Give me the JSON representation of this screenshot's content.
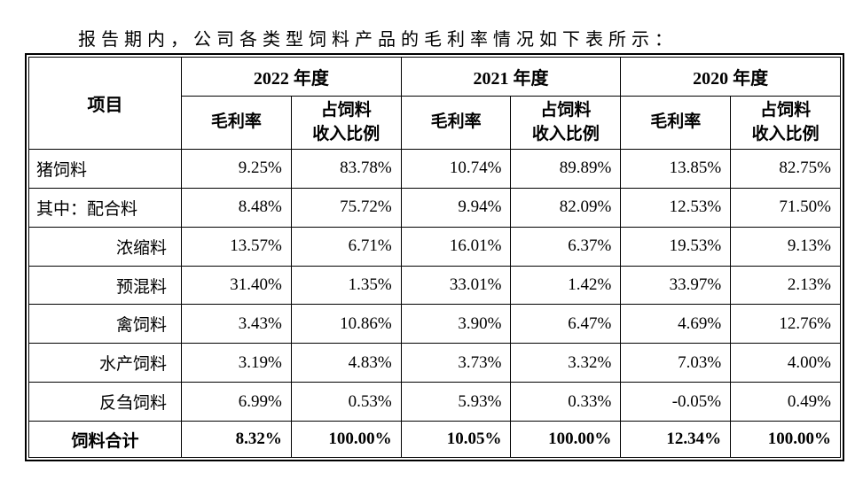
{
  "page": {
    "intro_text": "报告期内，公司各类型饲料产品的毛利率情况如下表所示："
  },
  "table": {
    "corner_header": "项目",
    "year_groups": [
      {
        "label": "2022 年度"
      },
      {
        "label": "2021 年度"
      },
      {
        "label": "2020 年度"
      }
    ],
    "sub_headers": {
      "margin_label": "毛利率",
      "share_label_line1": "占饲料",
      "share_label_line2": "收入比例"
    },
    "rows": [
      {
        "label": "猪饲料",
        "values": [
          "9.25%",
          "83.78%",
          "10.74%",
          "89.89%",
          "13.85%",
          "82.75%"
        ]
      },
      {
        "label": "其中：配合料",
        "values": [
          "8.48%",
          "75.72%",
          "9.94%",
          "82.09%",
          "12.53%",
          "71.50%"
        ]
      },
      {
        "label": "浓缩料",
        "values": [
          "13.57%",
          "6.71%",
          "16.01%",
          "6.37%",
          "19.53%",
          "9.13%"
        ]
      },
      {
        "label": "预混料",
        "values": [
          "31.40%",
          "1.35%",
          "33.01%",
          "1.42%",
          "33.97%",
          "2.13%"
        ]
      },
      {
        "label": "禽饲料",
        "values": [
          "3.43%",
          "10.86%",
          "3.90%",
          "6.47%",
          "4.69%",
          "12.76%"
        ]
      },
      {
        "label": "水产饲料",
        "values": [
          "3.19%",
          "4.83%",
          "3.73%",
          "3.32%",
          "7.03%",
          "4.00%"
        ]
      },
      {
        "label": "反刍饲料",
        "values": [
          "6.99%",
          "0.53%",
          "5.93%",
          "0.33%",
          "-0.05%",
          "0.49%"
        ]
      },
      {
        "label": "饲料合计",
        "values": [
          "8.32%",
          "100.00%",
          "10.05%",
          "100.00%",
          "12.34%",
          "100.00%"
        ]
      }
    ]
  }
}
